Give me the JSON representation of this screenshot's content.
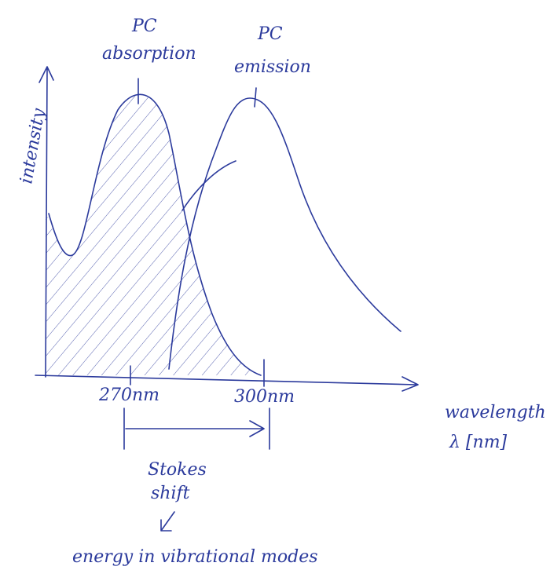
{
  "y_axis_label": "intensity",
  "absorption": {
    "title": "PC",
    "label": "absorption"
  },
  "emission": {
    "title": "PC",
    "label": "emission"
  },
  "x_ticks": [
    "270nm",
    "300nm"
  ],
  "x_axis_label": {
    "name": "wavelength",
    "unit": "λ [nm]"
  },
  "stokes": {
    "line1": "Stokes",
    "line2": "shift"
  },
  "note": "energy in vibrational modes"
}
